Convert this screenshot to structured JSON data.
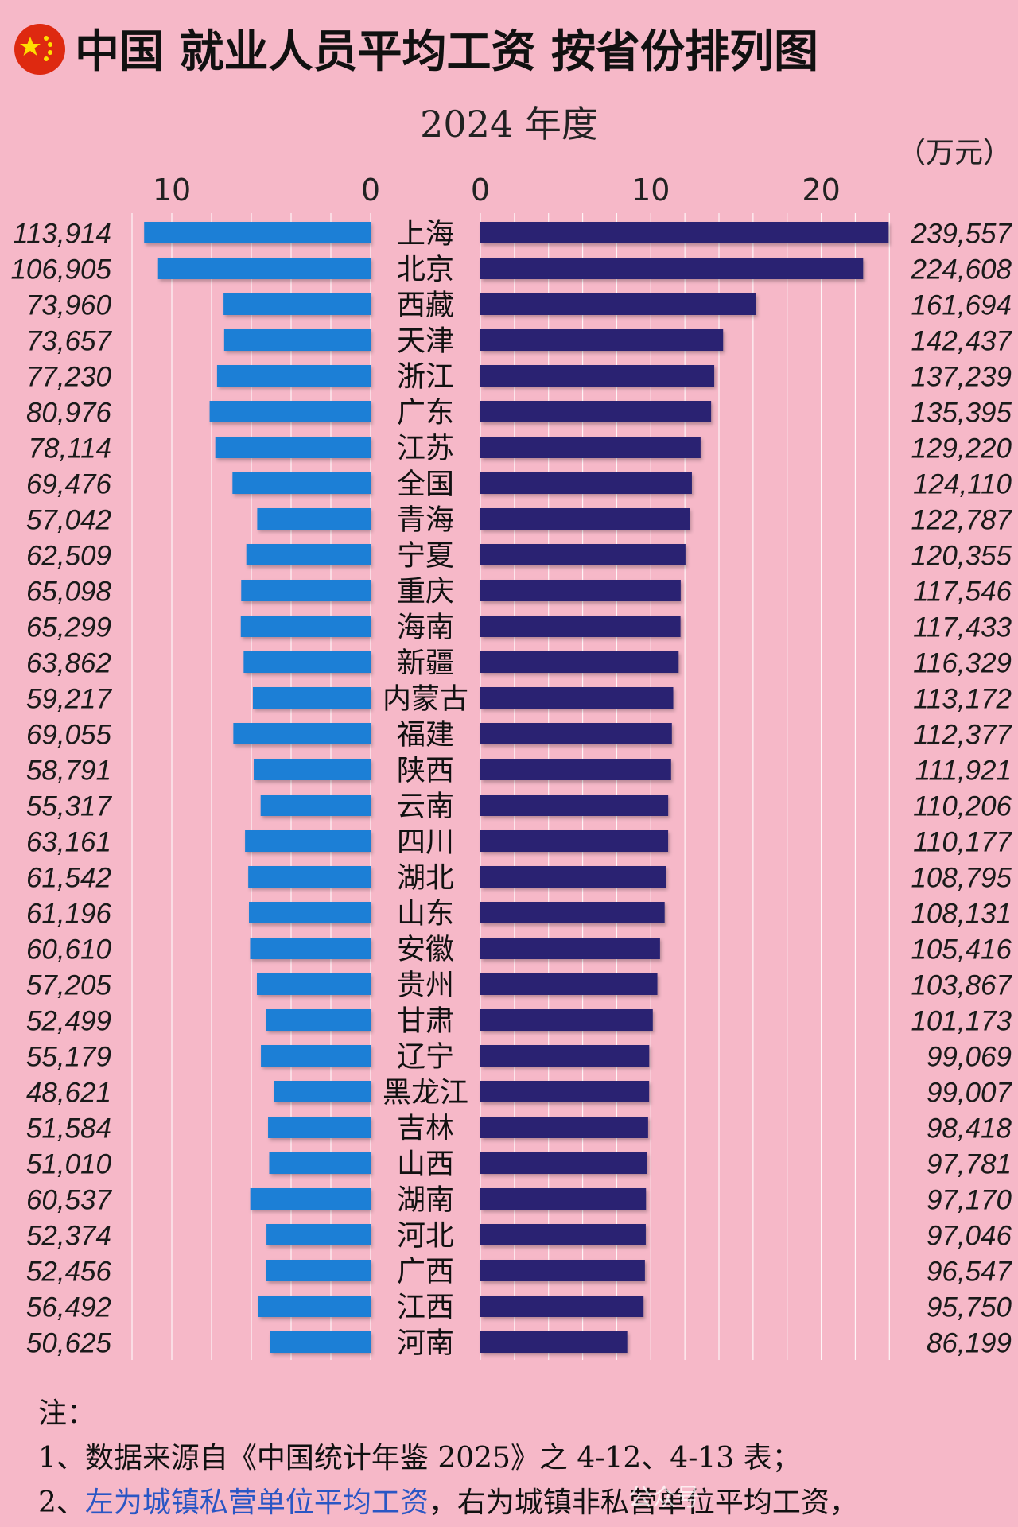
{
  "header": {
    "flag_icon": "china-flag-icon",
    "title": "中国 就业人员平均工资 按省份排列图",
    "year": "2024 年度",
    "unit": "（万元）"
  },
  "colors": {
    "background": "#f6b8c8",
    "left_bar": "#1f7fd6",
    "right_bar": "#2a2472",
    "highlight": "#d8323a"
  },
  "chart_data": {
    "type": "bar",
    "title": "中国 就业人员平均工资 按省份排列图",
    "subtitle": "2024 年度",
    "unit": "万元",
    "highlight_category": "全国",
    "categories": [
      "上海",
      "北京",
      "西藏",
      "天津",
      "浙江",
      "广东",
      "江苏",
      "全国",
      "青海",
      "宁夏",
      "重庆",
      "海南",
      "新疆",
      "内蒙古",
      "福建",
      "陕西",
      "云南",
      "四川",
      "湖北",
      "山东",
      "安徽",
      "贵州",
      "甘肃",
      "辽宁",
      "黑龙江",
      "吉林",
      "山西",
      "湖南",
      "河北",
      "广西",
      "江西",
      "河南"
    ],
    "series": [
      {
        "name": "城镇私营单位平均工资",
        "side": "left",
        "axis_ticks": [
          "10",
          "0"
        ],
        "xlim": [
          0,
          12.6
        ],
        "values": [
          113914,
          106905,
          73960,
          73657,
          77230,
          80976,
          78114,
          69476,
          57042,
          62509,
          65098,
          65299,
          63862,
          59217,
          69055,
          58791,
          55317,
          63161,
          61542,
          61196,
          60610,
          57205,
          52499,
          55179,
          48621,
          51584,
          51010,
          60537,
          52374,
          52456,
          56492,
          50625
        ],
        "labels": [
          "113,914",
          "106,905",
          "73,960",
          "73,657",
          "77,230",
          "80,976",
          "78,114",
          "69,476",
          "57,042",
          "62,509",
          "65,098",
          "65,299",
          "63,862",
          "59,217",
          "69,055",
          "58,791",
          "55,317",
          "63,161",
          "61,542",
          "61,196",
          "60,610",
          "57,205",
          "52,499",
          "55,179",
          "48,621",
          "51,584",
          "51,010",
          "60,537",
          "52,374",
          "52,456",
          "56,492",
          "50,625"
        ]
      },
      {
        "name": "城镇非私营单位平均工资",
        "side": "right",
        "axis_ticks": [
          "0",
          "10",
          "20"
        ],
        "xlim": [
          0,
          25.2
        ],
        "values": [
          239557,
          224608,
          161694,
          142437,
          137239,
          135395,
          129220,
          124110,
          122787,
          120355,
          117546,
          117433,
          116329,
          113172,
          112377,
          111921,
          110206,
          110177,
          108795,
          108131,
          105416,
          103867,
          101173,
          99069,
          99007,
          98418,
          97781,
          97170,
          97046,
          96547,
          95750,
          86199
        ],
        "labels": [
          "239,557",
          "224,608",
          "161,694",
          "142,437",
          "137,239",
          "135,395",
          "129,220",
          "124,110",
          "122,787",
          "120,355",
          "117,546",
          "117,433",
          "116,329",
          "113,172",
          "112,377",
          "111,921",
          "110,206",
          "110,177",
          "108,795",
          "108,131",
          "105,416",
          "103,867",
          "101,173",
          "99,069",
          "99,007",
          "98,418",
          "97,781",
          "97,170",
          "97,046",
          "96,547",
          "95,750",
          "86,199"
        ]
      }
    ]
  },
  "notes": {
    "heading": "注：",
    "line1": "1、数据来源自《中国统计年鉴 2025》之 4-12、4-13 表；",
    "line2_prefix": "2、",
    "line2_blue": "左为城镇私营单位平均工资",
    "line2_rest": "，右为城镇非私营单位平均工资，"
  },
  "watermark": "公众号"
}
